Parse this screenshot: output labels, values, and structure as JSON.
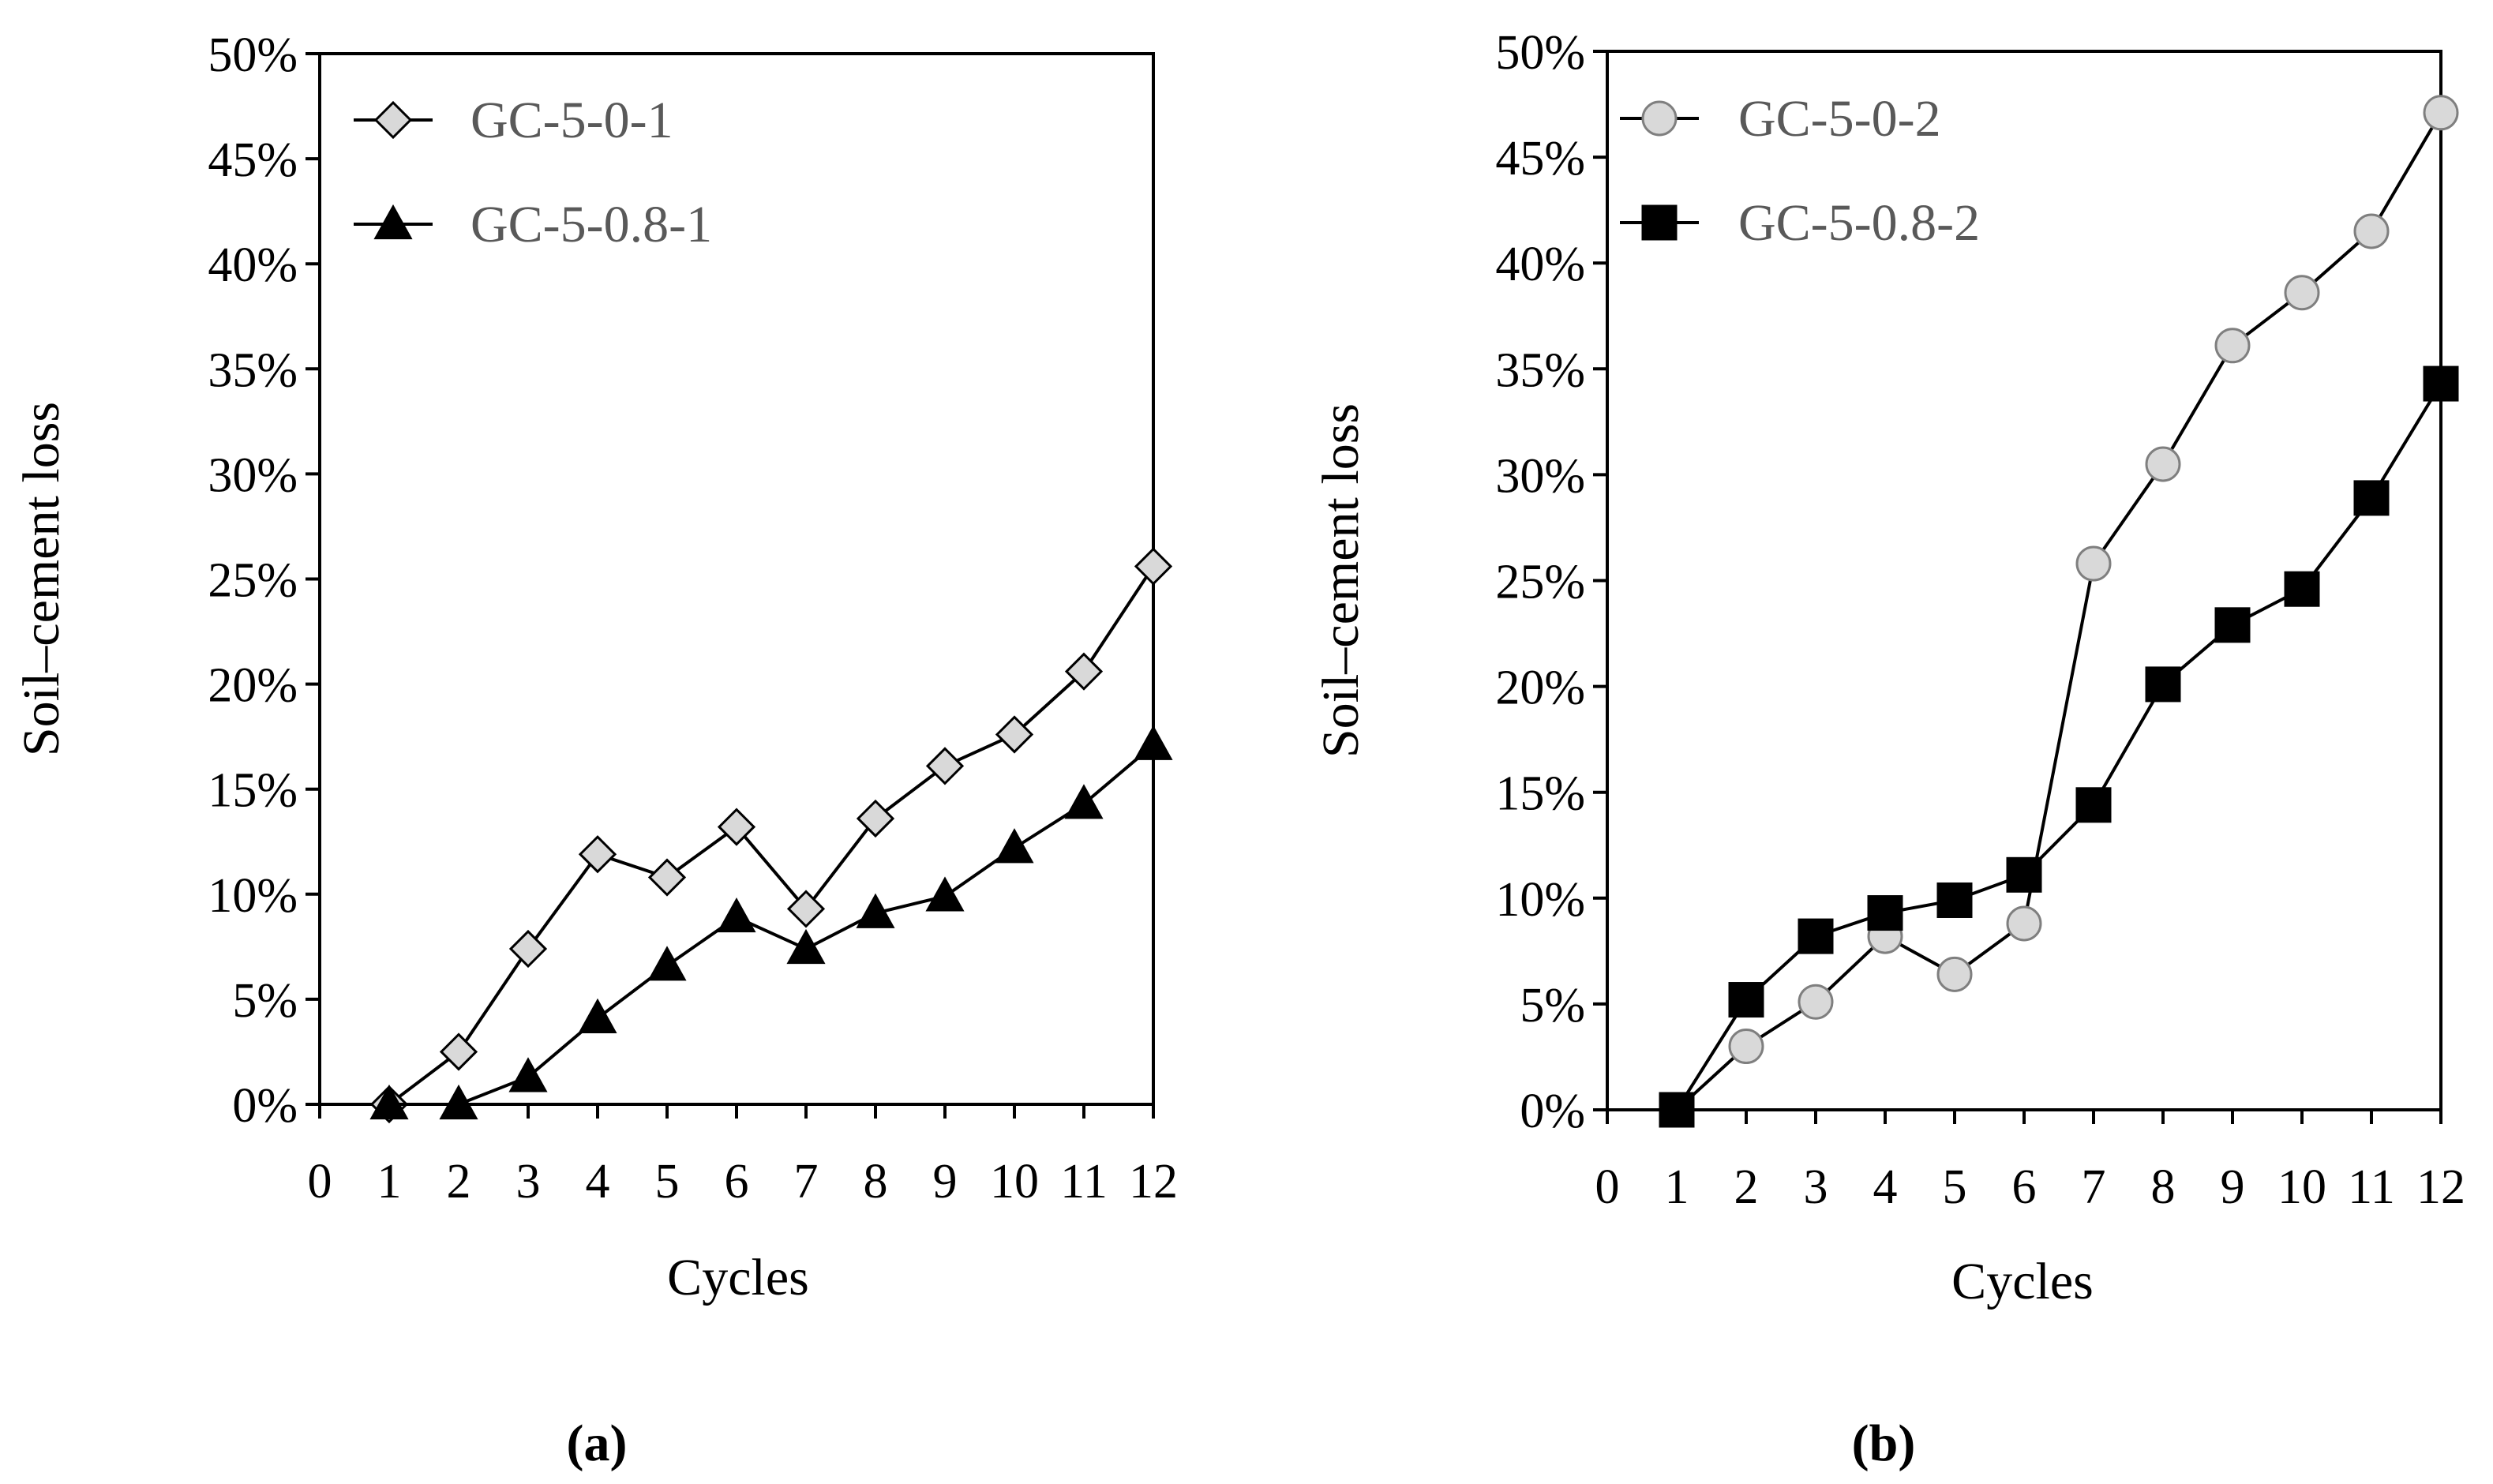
{
  "chart_data": [
    {
      "type": "line",
      "panel_label": "(a)",
      "xlabel": "Cycles",
      "ylabel": "Soil–cement loss",
      "xlim": [
        0,
        12
      ],
      "ylim": [
        0,
        0.5
      ],
      "x_ticks": [
        "0",
        "1",
        "2",
        "3",
        "4",
        "5",
        "6",
        "7",
        "8",
        "9",
        "10",
        "11",
        "12"
      ],
      "y_ticks": [
        "0%",
        "5%",
        "10%",
        "15%",
        "20%",
        "25%",
        "30%",
        "35%",
        "40%",
        "45%",
        "50%"
      ],
      "grid": false,
      "legend_position": "top-left",
      "series": [
        {
          "name": "GC-5-0-1",
          "marker": "diamond",
          "marker_fill": "#d9d9d9",
          "x": [
            1,
            2,
            3,
            4,
            5,
            6,
            7,
            8,
            9,
            10,
            11,
            12
          ],
          "values": [
            0.0,
            0.025,
            0.074,
            0.119,
            0.108,
            0.132,
            0.093,
            0.136,
            0.161,
            0.176,
            0.206,
            0.256
          ]
        },
        {
          "name": "GC-5-0.8-1",
          "marker": "triangle",
          "marker_fill": "#000000",
          "x": [
            1,
            2,
            3,
            4,
            5,
            6,
            7,
            8,
            9,
            10,
            11,
            12
          ],
          "values": [
            0.0,
            0.0,
            0.013,
            0.041,
            0.066,
            0.089,
            0.074,
            0.091,
            0.099,
            0.122,
            0.143,
            0.171
          ]
        }
      ]
    },
    {
      "type": "line",
      "panel_label": "(b)",
      "xlabel": "Cycles",
      "ylabel": "Soil–cement loss",
      "xlim": [
        0,
        12
      ],
      "ylim": [
        0,
        0.5
      ],
      "x_ticks": [
        "0",
        "1",
        "2",
        "3",
        "4",
        "5",
        "6",
        "7",
        "8",
        "9",
        "10",
        "11",
        "12"
      ],
      "y_ticks": [
        "0%",
        "5%",
        "10%",
        "15%",
        "20%",
        "25%",
        "30%",
        "35%",
        "40%",
        "45%",
        "50%"
      ],
      "grid": false,
      "legend_position": "top-left",
      "series": [
        {
          "name": "GC-5-0-2",
          "marker": "circle",
          "marker_fill": "#d9d9d9",
          "x": [
            1,
            2,
            3,
            4,
            5,
            6,
            7,
            8,
            9,
            10,
            11,
            12
          ],
          "values": [
            0.0,
            0.03,
            0.051,
            0.082,
            0.064,
            0.088,
            0.258,
            0.305,
            0.361,
            0.386,
            0.415,
            0.471
          ]
        },
        {
          "name": "GC-5-0.8-2",
          "marker": "square",
          "marker_fill": "#000000",
          "x": [
            1,
            2,
            3,
            4,
            5,
            6,
            7,
            8,
            9,
            10,
            11,
            12
          ],
          "values": [
            0.0,
            0.052,
            0.082,
            0.093,
            0.099,
            0.111,
            0.144,
            0.201,
            0.229,
            0.246,
            0.289,
            0.343
          ]
        }
      ]
    }
  ]
}
